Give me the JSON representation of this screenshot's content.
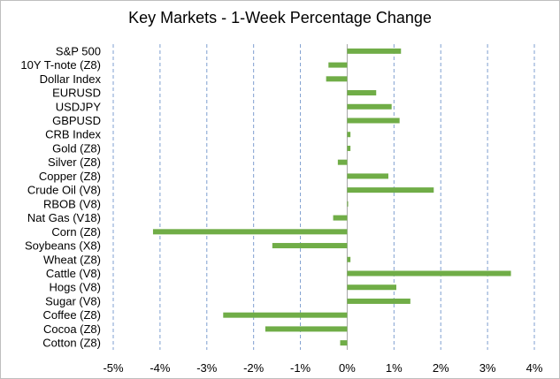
{
  "chart_data": {
    "type": "bar",
    "orientation": "horizontal",
    "title": "Key Markets - 1-Week Percentage Change",
    "categories": [
      "S&P 500",
      "10Y T-note (Z8)",
      "Dollar Index",
      "EURUSD",
      "USDJPY",
      "GBPUSD",
      "CRB Index",
      "Gold (Z8)",
      "Silver (Z8)",
      "Copper (Z8)",
      "Crude Oil (V8)",
      "RBOB (V8)",
      "Nat Gas (V18)",
      "Corn (Z8)",
      "Soybeans (X8)",
      "Wheat (Z8)",
      "Cattle (V8)",
      "Hogs (V8)",
      "Sugar (V8)",
      "Coffee (Z8)",
      "Cocoa (Z8)",
      "Cotton (Z8)"
    ],
    "values": [
      1.15,
      -0.4,
      -0.45,
      0.62,
      0.95,
      1.12,
      0.07,
      0.07,
      -0.2,
      0.88,
      1.85,
      0.02,
      -0.3,
      -4.15,
      -1.6,
      0.07,
      3.5,
      1.05,
      1.35,
      -2.65,
      -1.75,
      -0.15
    ],
    "xlim": [
      -5,
      4
    ],
    "ticks": [
      -5,
      -4,
      -3,
      -2,
      -1,
      0,
      1,
      2,
      3,
      4
    ],
    "tick_labels": [
      "-5%",
      "-4%",
      "-3%",
      "-2%",
      "-1%",
      "0%",
      "1%",
      "2%",
      "3%",
      "4%"
    ],
    "grid": true,
    "bar_color": "#70ad47",
    "grid_color": "#7f9fd0"
  }
}
